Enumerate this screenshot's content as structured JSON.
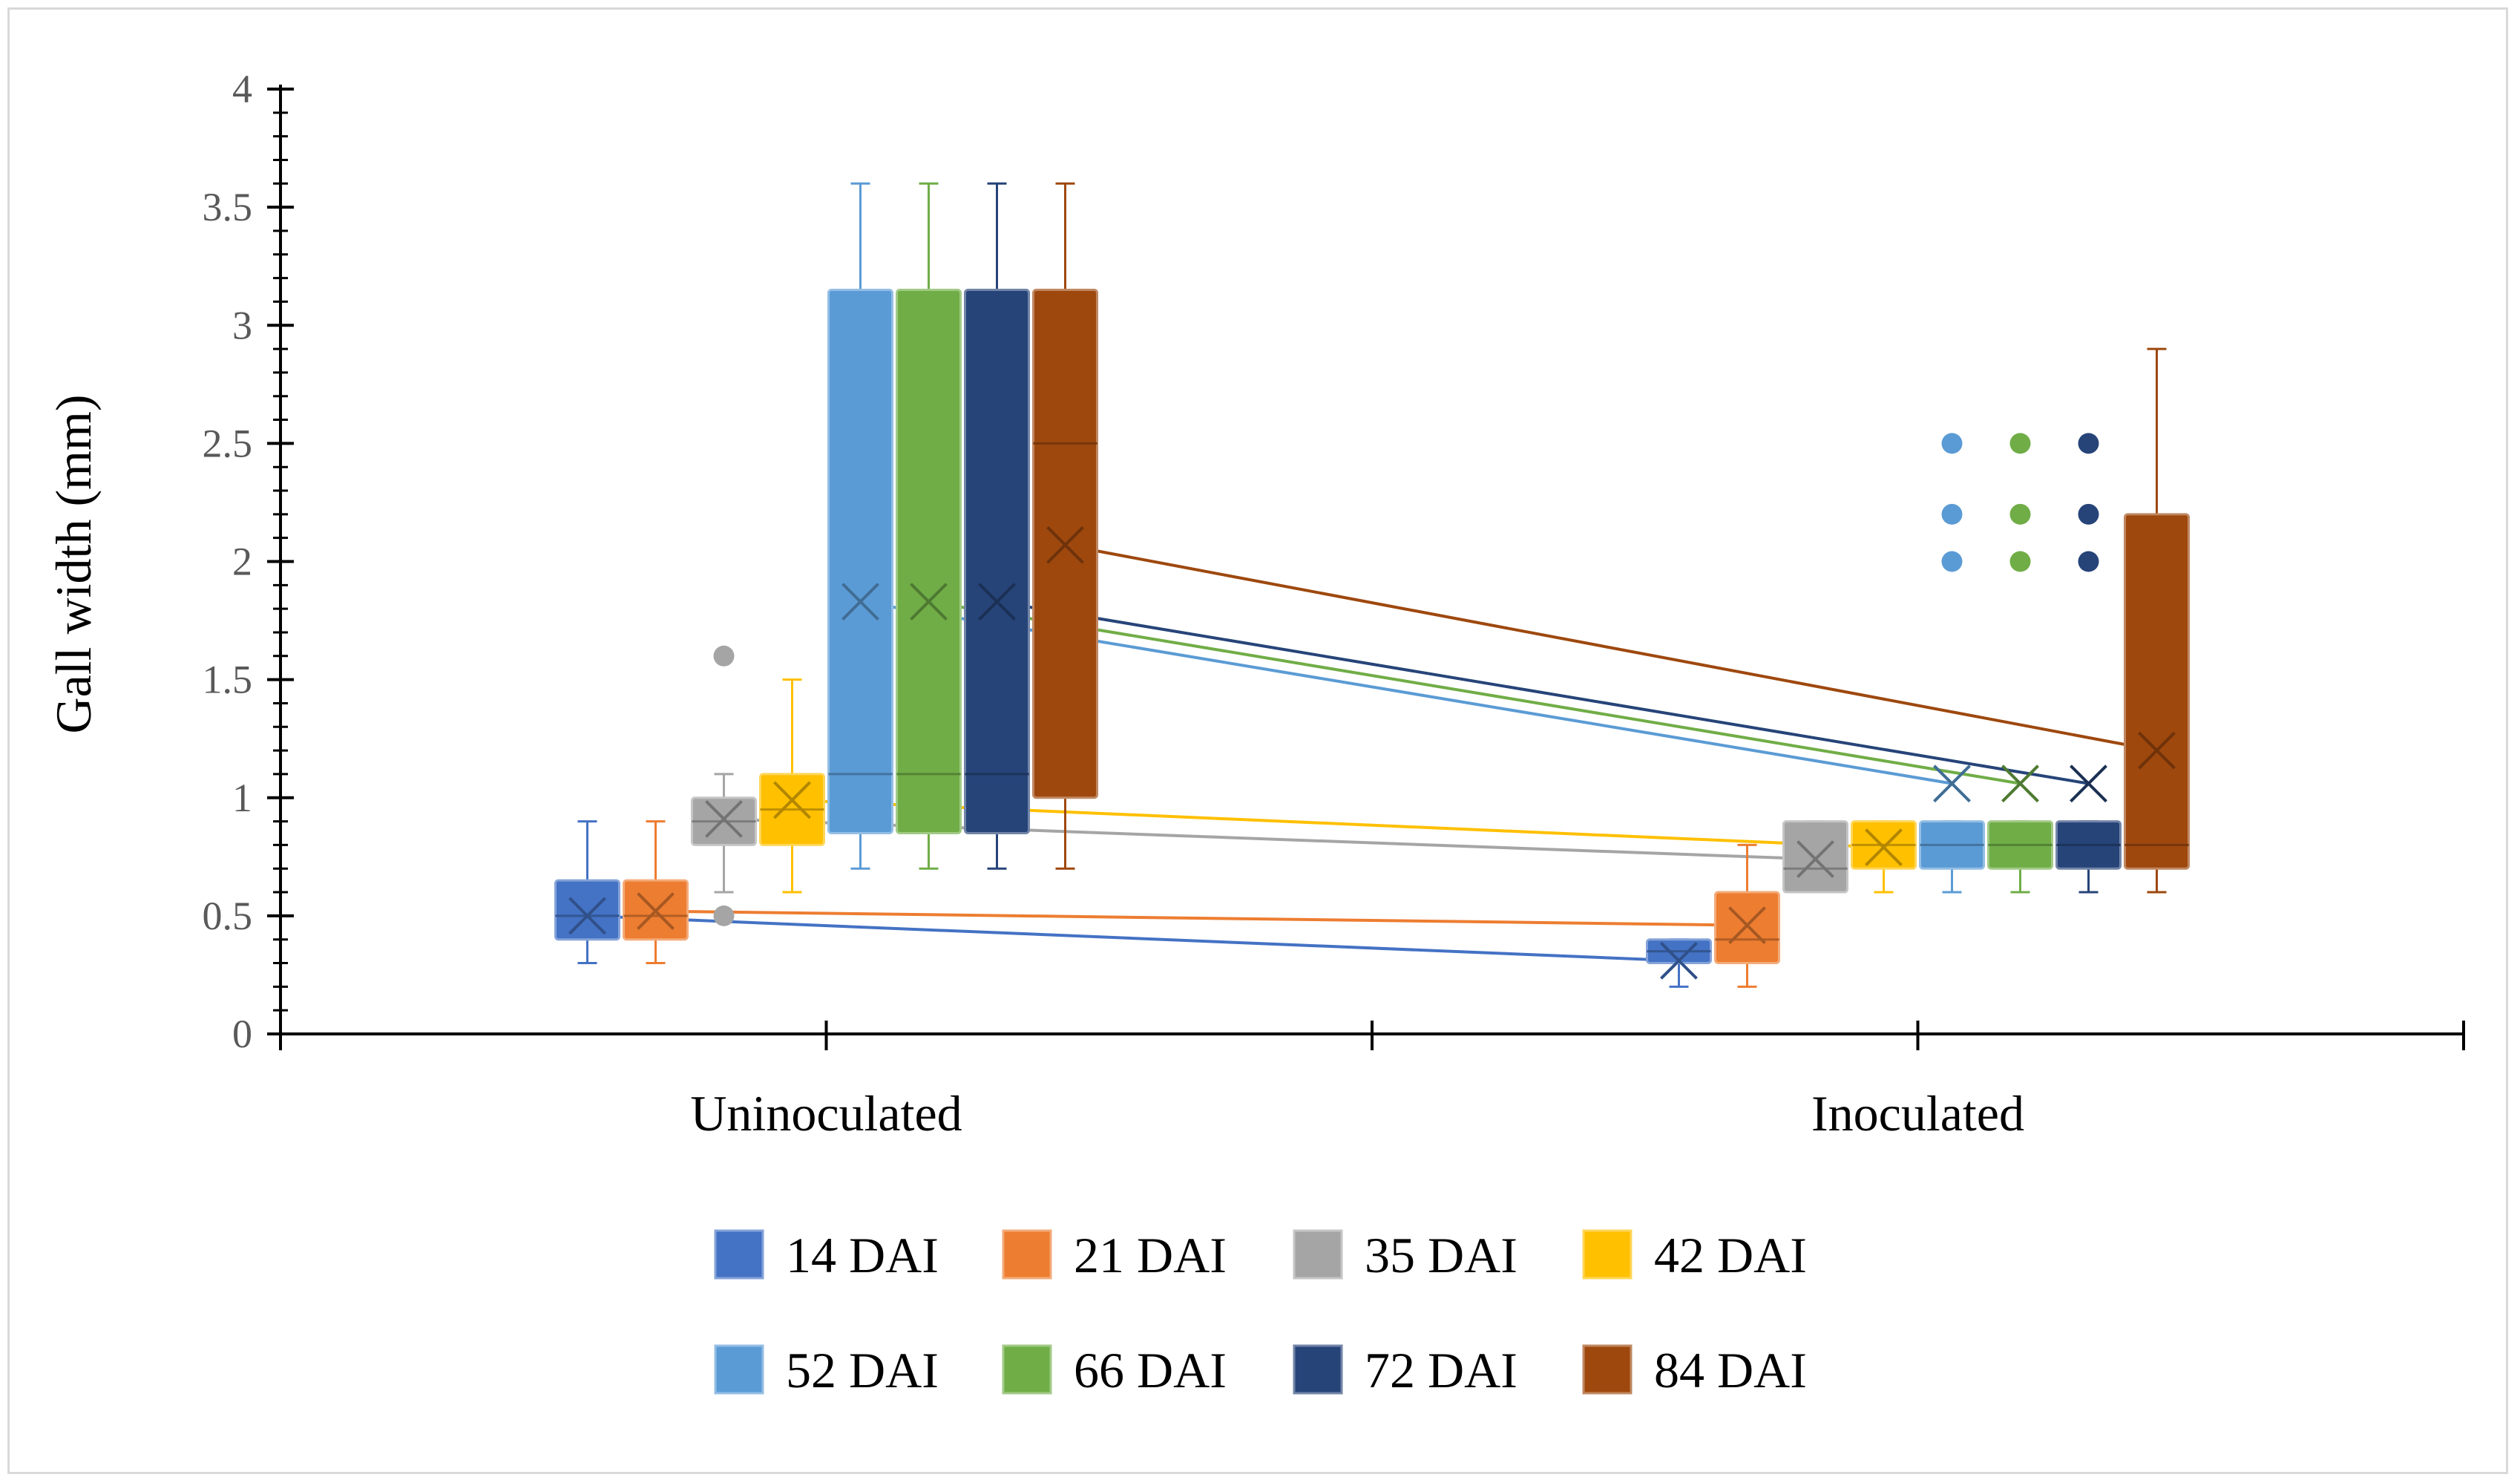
{
  "chart_data": {
    "type": "box",
    "title": "",
    "ylabel": "Gall width (mm)",
    "xlabel": "",
    "ylim": [
      0,
      4
    ],
    "y_ticks": [
      "0",
      "0.5",
      "1",
      "1.5",
      "2",
      "2.5",
      "3",
      "3.5",
      "4"
    ],
    "grid": false,
    "legend_placement": "bottom",
    "categories": [
      "Uninoculated",
      "Inoculated"
    ],
    "series": [
      {
        "name": "14 DAI",
        "color": "#4472C4",
        "boxes": [
          {
            "min": 0.3,
            "q1": 0.4,
            "median": 0.5,
            "q3": 0.65,
            "max": 0.9,
            "mean": 0.5,
            "outliers": []
          },
          {
            "min": 0.2,
            "q1": 0.3,
            "median": 0.35,
            "q3": 0.4,
            "max": 0.4,
            "mean": 0.31,
            "outliers": []
          }
        ]
      },
      {
        "name": "21 DAI",
        "color": "#ED7D31",
        "boxes": [
          {
            "min": 0.3,
            "q1": 0.4,
            "median": 0.5,
            "q3": 0.65,
            "max": 0.9,
            "mean": 0.52,
            "outliers": []
          },
          {
            "min": 0.2,
            "q1": 0.3,
            "median": 0.4,
            "q3": 0.6,
            "max": 0.8,
            "mean": 0.46,
            "outliers": []
          }
        ]
      },
      {
        "name": "35 DAI",
        "color": "#A5A5A5",
        "boxes": [
          {
            "min": 0.6,
            "q1": 0.8,
            "median": 0.9,
            "q3": 1.0,
            "max": 1.1,
            "mean": 0.91,
            "outliers": [
              1.6,
              0.5
            ]
          },
          {
            "min": 0.6,
            "q1": 0.6,
            "median": 0.7,
            "q3": 0.9,
            "max": 0.9,
            "mean": 0.74,
            "outliers": []
          }
        ]
      },
      {
        "name": "42 DAI",
        "color": "#FFC000",
        "boxes": [
          {
            "min": 0.6,
            "q1": 0.8,
            "median": 0.95,
            "q3": 1.1,
            "max": 1.5,
            "mean": 0.99,
            "outliers": []
          },
          {
            "min": 0.6,
            "q1": 0.7,
            "median": 0.8,
            "q3": 0.9,
            "max": 0.9,
            "mean": 0.79,
            "outliers": []
          }
        ]
      },
      {
        "name": "52 DAI",
        "color": "#5B9BD5",
        "boxes": [
          {
            "min": 0.7,
            "q1": 0.85,
            "median": 1.1,
            "q3": 3.15,
            "max": 3.6,
            "mean": 1.83,
            "outliers": []
          },
          {
            "min": 0.6,
            "q1": 0.7,
            "median": 0.8,
            "q3": 0.9,
            "max": 0.9,
            "mean": 1.06,
            "outliers": [
              2.0,
              2.2,
              2.5
            ]
          }
        ]
      },
      {
        "name": "66 DAI",
        "color": "#70AD47",
        "boxes": [
          {
            "min": 0.7,
            "q1": 0.85,
            "median": 1.1,
            "q3": 3.15,
            "max": 3.6,
            "mean": 1.83,
            "outliers": []
          },
          {
            "min": 0.6,
            "q1": 0.7,
            "median": 0.8,
            "q3": 0.9,
            "max": 0.9,
            "mean": 1.06,
            "outliers": [
              2.0,
              2.2,
              2.5
            ]
          }
        ]
      },
      {
        "name": "72 DAI",
        "color": "#264478",
        "boxes": [
          {
            "min": 0.7,
            "q1": 0.85,
            "median": 1.1,
            "q3": 3.15,
            "max": 3.6,
            "mean": 1.83,
            "outliers": []
          },
          {
            "min": 0.6,
            "q1": 0.7,
            "median": 0.8,
            "q3": 0.9,
            "max": 0.9,
            "mean": 1.06,
            "outliers": [
              2.0,
              2.2,
              2.5
            ]
          }
        ]
      },
      {
        "name": "84 DAI",
        "color": "#9E480E",
        "boxes": [
          {
            "min": 0.7,
            "q1": 1.0,
            "median": 2.5,
            "q3": 3.15,
            "max": 3.6,
            "mean": 2.07,
            "outliers": []
          },
          {
            "min": 0.6,
            "q1": 0.7,
            "median": 0.8,
            "q3": 2.2,
            "max": 2.9,
            "mean": 1.2,
            "outliers": []
          }
        ]
      }
    ]
  }
}
